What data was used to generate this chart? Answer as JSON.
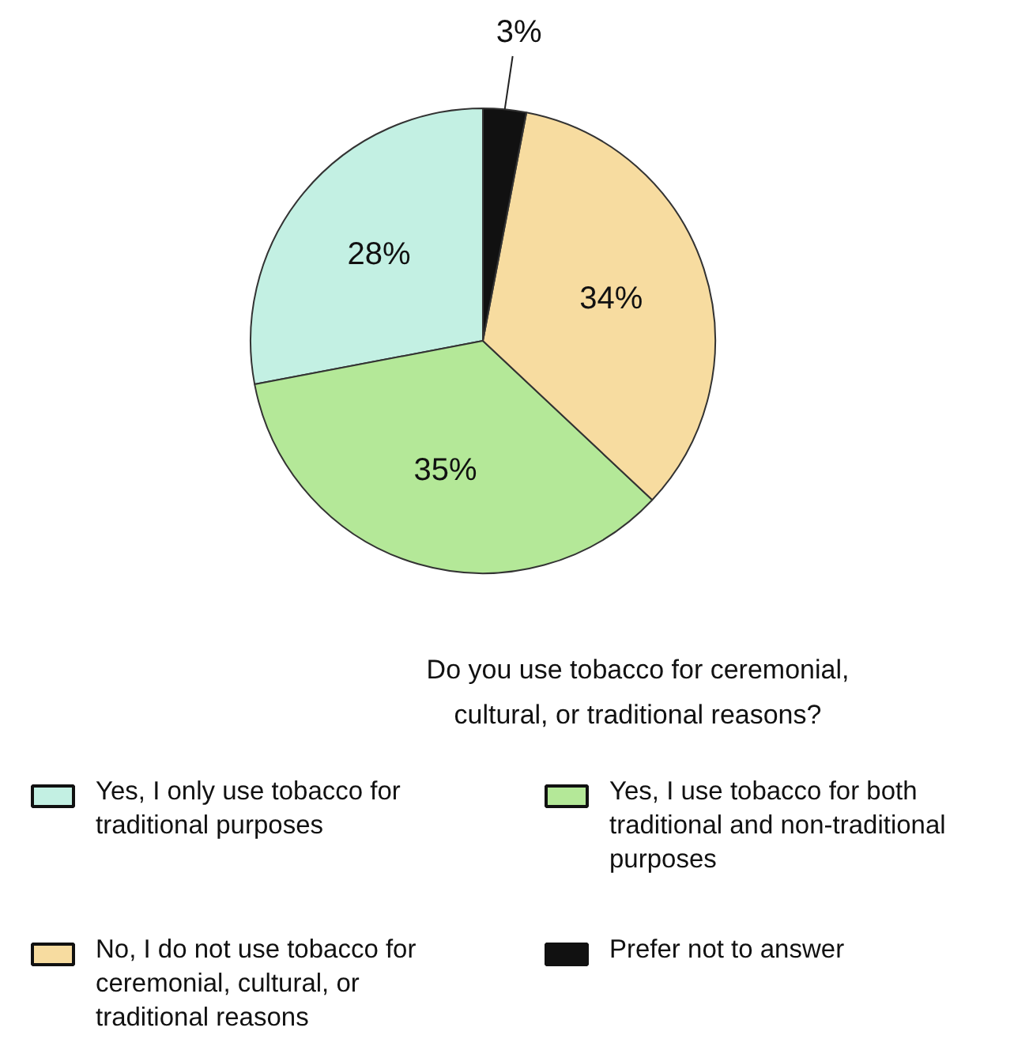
{
  "chart_data": {
    "type": "pie",
    "legend_title": "Do you use tobacco for ceremonial, cultural, or traditional reasons?",
    "categories": [
      "Yes, I only use tobacco for traditional purposes",
      "Yes, I use tobacco for both traditional and non-traditional purposes",
      "No, I do not use tobacco for ceremonial, cultural, or traditional reasons",
      "Prefer not to answer"
    ],
    "values": [
      28,
      35,
      34,
      3
    ],
    "colors": [
      "#c3f0e3",
      "#b4e898",
      "#f7dca0",
      "#111111"
    ],
    "value_labels": [
      "28%",
      "35%",
      "34%",
      "3%"
    ],
    "legend": "bottom"
  }
}
